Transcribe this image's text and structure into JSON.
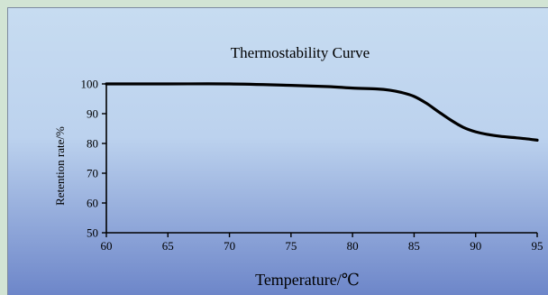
{
  "chart_data": {
    "type": "line",
    "title": "Thermostability Curve",
    "xlabel": "Temperature/℃",
    "ylabel": "Retention rate/%",
    "xlim": [
      60,
      95
    ],
    "ylim": [
      50,
      100
    ],
    "x_ticks": [
      60,
      65,
      70,
      75,
      80,
      85,
      90,
      95
    ],
    "y_ticks": [
      50,
      60,
      70,
      80,
      90,
      100
    ],
    "grid": false,
    "legend": "none",
    "series": [
      {
        "x": [
          60,
          65,
          70,
          75,
          78,
          80,
          82,
          83,
          84,
          85,
          86,
          87,
          88,
          89,
          90,
          91,
          92,
          93,
          94,
          95
        ],
        "values": [
          100,
          100,
          100,
          99.5,
          99.1,
          98.6,
          98.3,
          97.9,
          97.1,
          95.8,
          93.5,
          90.6,
          87.8,
          85.4,
          83.9,
          83.0,
          82.4,
          82.0,
          81.6,
          81.1
        ]
      }
    ],
    "colors": {
      "line": "#000000",
      "background_top": "#c7dcf1",
      "background_bottom": "#6d86c9"
    }
  }
}
